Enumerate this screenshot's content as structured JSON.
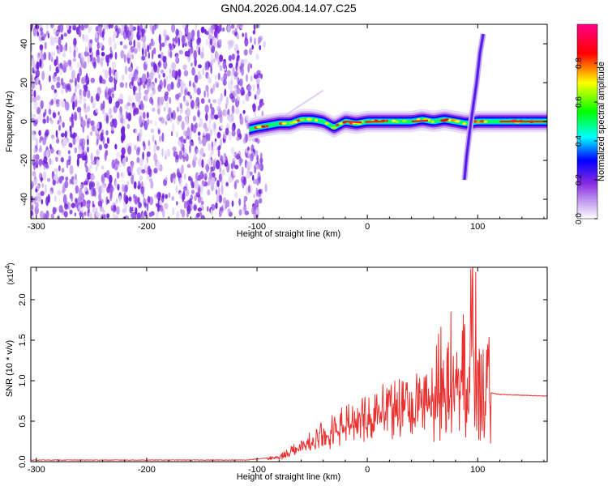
{
  "title": "GN04.2026.004.14.07.C25",
  "chart_data": [
    {
      "type": "heatmap",
      "name": "spectrogram",
      "xlabel": "Height of straight line (km)",
      "ylabel": "Frequency (Hz)",
      "xlim": [
        -305,
        163
      ],
      "ylim": [
        -50,
        50
      ],
      "xticks": [
        -300,
        -200,
        -100,
        0,
        100
      ],
      "yticks": [
        -40,
        -20,
        0,
        20,
        40
      ],
      "colorbar": {
        "label": "Normalized spectral amplitude",
        "range": [
          0,
          1
        ],
        "ticks": [
          "0.0",
          "0.2",
          "0.4",
          "0.6",
          "0.8"
        ],
        "colors": [
          "#ffffff",
          "#8a2be2",
          "#0000ff",
          "#00ffff",
          "#00ff00",
          "#ffff00",
          "#ff0000",
          "#ff00aa"
        ]
      },
      "noise_region_x": [
        -305,
        -95
      ],
      "ridge": {
        "x": [
          -107,
          -100,
          -90,
          -80,
          -70,
          -60,
          -50,
          -40,
          -30,
          -20,
          -10,
          0,
          10,
          20,
          30,
          40,
          50,
          60,
          70,
          80,
          90,
          100,
          110,
          120,
          130,
          140,
          150,
          163
        ],
        "y": [
          -4,
          -3,
          -2,
          -1,
          -1,
          1,
          1,
          0,
          -3,
          0,
          -1,
          0,
          0,
          0,
          0,
          0,
          1,
          0,
          1,
          0,
          -1,
          0,
          0,
          0,
          0,
          0,
          0,
          0
        ]
      },
      "spur": {
        "x": [
          88,
          90,
          93,
          96,
          99,
          102,
          105
        ],
        "y": [
          -30,
          -18,
          -4,
          8,
          20,
          35,
          45
        ]
      }
    },
    {
      "type": "line",
      "name": "snr",
      "ylabel": "SNR (10 * v/v)",
      "xlabel": "Height of straight line (km)",
      "y_multiplier": "(x10",
      "y_multiplier_exp": "4",
      "xlim": [
        -305,
        163
      ],
      "ylim": [
        0,
        2.4
      ],
      "xticks": [
        -300,
        -200,
        -100,
        0,
        100
      ],
      "yticks": [
        "0.0",
        "0.5",
        "1.0",
        "1.5",
        "2.0"
      ],
      "color": "#e8312f",
      "x": [
        -305,
        -250,
        -200,
        -150,
        -110,
        -80,
        -70,
        -60,
        -50,
        -40,
        -30,
        -20,
        -10,
        0,
        10,
        20,
        30,
        40,
        50,
        55,
        60,
        65,
        70,
        75,
        80,
        85,
        90,
        95,
        100,
        105,
        108,
        112,
        120,
        140,
        163
      ],
      "y": [
        0.02,
        0.02,
        0.02,
        0.02,
        0.02,
        0.06,
        0.14,
        0.22,
        0.28,
        0.38,
        0.45,
        0.52,
        0.6,
        0.65,
        0.7,
        0.75,
        0.78,
        0.82,
        0.85,
        0.86,
        0.88,
        1.05,
        0.95,
        1.2,
        1.0,
        1.5,
        1.2,
        1.8,
        1.1,
        0.9,
        1.0,
        0.85,
        0.83,
        0.82,
        0.81
      ]
    }
  ]
}
